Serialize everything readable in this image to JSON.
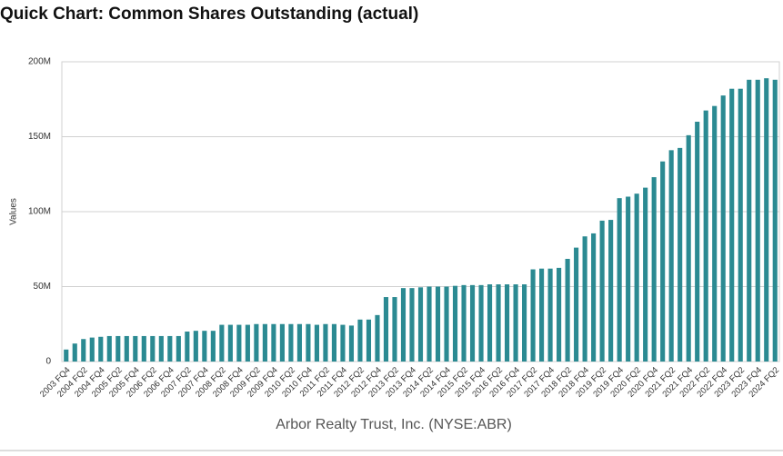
{
  "chart_data": {
    "type": "bar",
    "title": "Quick Chart: Common Shares Outstanding (actual)",
    "y_label": "Values",
    "footer": "Arbor Realty Trust, Inc. (NYSE:ABR)",
    "color": "#2b8a92",
    "grid": true,
    "ylim": [
      0,
      200
    ],
    "yticks": [
      0,
      {
        "value": 50,
        "label": "50M"
      },
      {
        "value": 100,
        "label": "100M"
      },
      {
        "value": 150,
        "label": "150M"
      },
      {
        "value": 200,
        "label": "200M"
      }
    ],
    "categories": [
      "2003 FQ4",
      null,
      "2004 FQ2",
      null,
      "2004 FQ4",
      null,
      "2005 FQ2",
      null,
      "2005 FQ4",
      null,
      "2006 FQ2",
      null,
      "2006 FQ4",
      null,
      "2007 FQ2",
      null,
      "2007 FQ4",
      null,
      "2008 FQ2",
      null,
      "2008 FQ4",
      null,
      "2009 FQ2",
      null,
      "2009 FQ4",
      null,
      "2010 FQ2",
      null,
      "2010 FQ4",
      null,
      "2011 FQ2",
      null,
      "2011 FQ4",
      null,
      "2012 FQ2",
      null,
      "2012 FQ4",
      null,
      "2013 FQ2",
      null,
      "2013 FQ4",
      null,
      "2014 FQ2",
      null,
      "2014 FQ4",
      null,
      "2015 FQ2",
      null,
      "2015 FQ4",
      null,
      "2016 FQ2",
      null,
      "2016 FQ4",
      null,
      "2017 FQ2",
      null,
      "2017 FQ4",
      null,
      "2018 FQ2",
      null,
      "2018 FQ4",
      null,
      "2019 FQ2",
      null,
      "2019 FQ4",
      null,
      "2020 FQ2",
      null,
      "2020 FQ4",
      null,
      "2021 FQ2",
      null,
      "2021 FQ4",
      null,
      "2022 FQ2",
      null,
      "2022 FQ4",
      null,
      "2023 FQ2",
      null,
      "2023 FQ4",
      null,
      "2024 FQ2"
    ],
    "values": [
      8,
      12,
      15,
      16,
      16.5,
      17,
      17,
      17,
      17,
      17,
      17,
      17,
      17,
      17,
      20,
      20.5,
      20.5,
      20.5,
      24.5,
      24.5,
      24.5,
      24.5,
      25,
      25,
      25,
      25,
      25,
      25,
      25,
      24.5,
      25,
      25,
      24.5,
      24,
      28,
      28,
      31,
      43,
      43,
      49,
      49,
      49.5,
      50,
      50,
      50,
      50.5,
      51,
      51,
      51,
      51.5,
      51.5,
      51.5,
      51.5,
      51.5,
      61.5,
      62,
      62,
      62.5,
      68.5,
      76,
      83.5,
      85.5,
      94,
      94.5,
      109,
      110,
      112,
      116,
      123,
      133.5,
      141,
      142.5,
      151,
      160,
      167.5,
      170.5,
      177.5,
      182,
      182,
      188,
      188,
      189,
      188
    ]
  }
}
